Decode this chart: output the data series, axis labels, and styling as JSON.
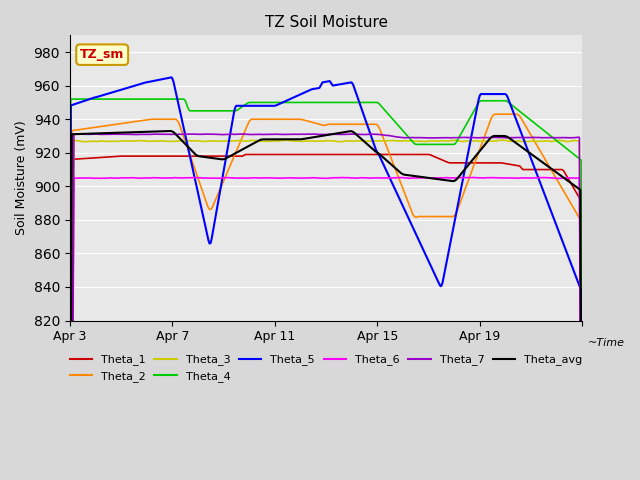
{
  "title": "TZ Soil Moisture",
  "xlabel": "Time",
  "ylabel": "Soil Moisture (mV)",
  "ylim": [
    820,
    990
  ],
  "yticks": [
    820,
    840,
    860,
    880,
    900,
    920,
    940,
    960,
    980
  ],
  "xlim": [
    0,
    20
  ],
  "xtick_positions": [
    0,
    4,
    8,
    12,
    16,
    20
  ],
  "xtick_labels": [
    "Apr 3",
    "Apr 7",
    "Apr 11",
    "Apr 15",
    "Apr 19",
    ""
  ],
  "bg_color": "#d8d8d8",
  "plot_bg": "#e8e8e8",
  "tag_text": "TZ_sm",
  "tag_color": "#cc0000",
  "tag_bg": "#ffffcc",
  "tag_border": "#cc9900",
  "series_colors": {
    "Theta_1": "#cc0000",
    "Theta_2": "#ff8800",
    "Theta_3": "#cccc00",
    "Theta_4": "#00cc00",
    "Theta_5": "#0000ff",
    "Theta_6": "#ff00ff",
    "Theta_7": "#9900cc",
    "Theta_avg": "#000000"
  }
}
